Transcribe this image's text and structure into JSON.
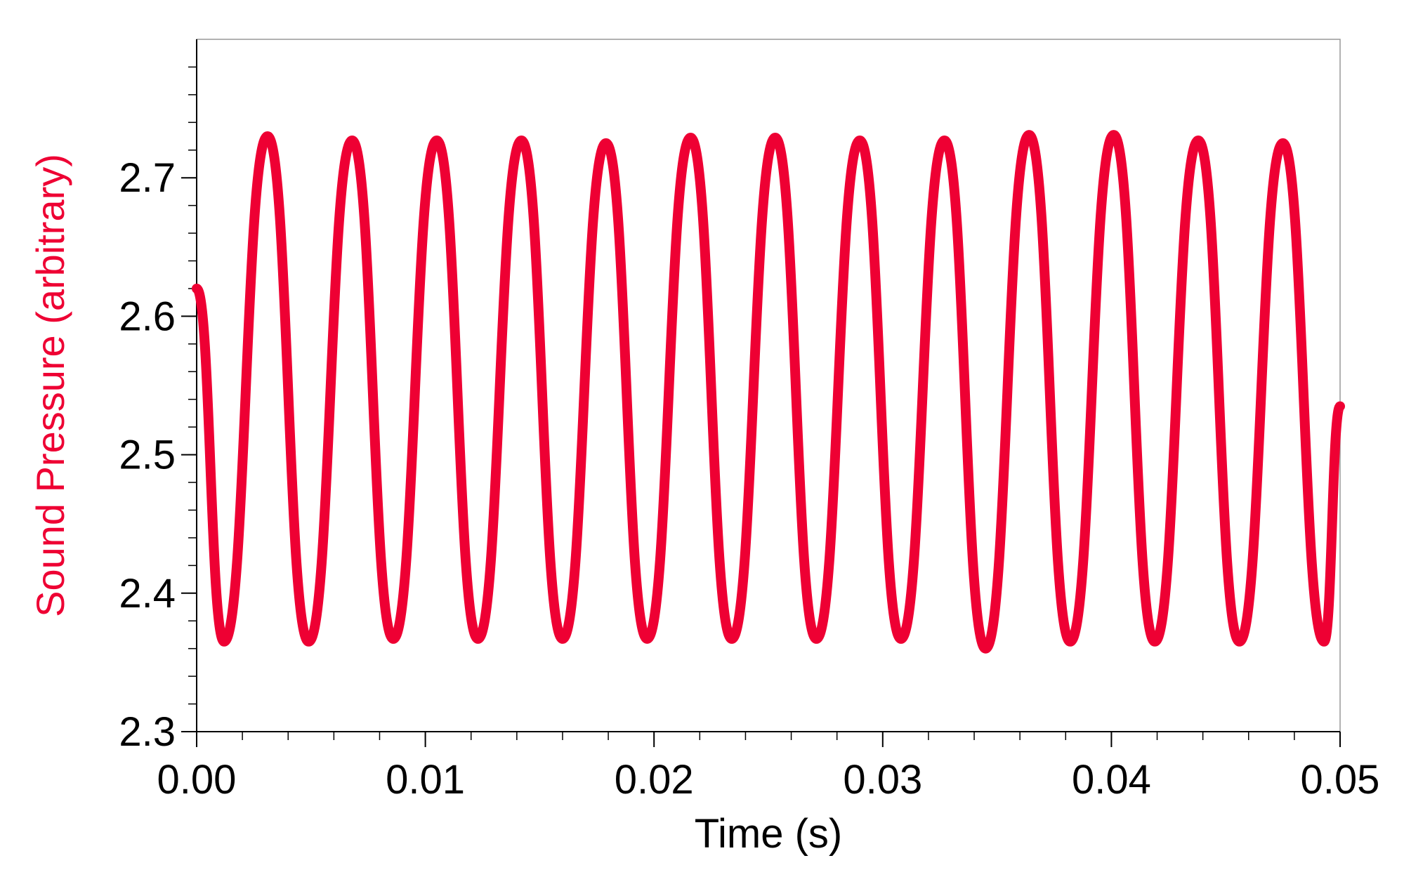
{
  "chart_data": {
    "type": "line",
    "title": "",
    "xlabel": "Time (s)",
    "ylabel": "Sound Pressure (arbitrary)",
    "xlim": [
      0,
      0.05
    ],
    "ylim": [
      2.3,
      2.8
    ],
    "x_ticks": [
      "0.00",
      "0.01",
      "0.02",
      "0.03",
      "0.04",
      "0.05"
    ],
    "y_ticks": [
      "2.3",
      "2.4",
      "2.5",
      "2.6",
      "2.7"
    ],
    "x_tick_values": [
      0,
      0.01,
      0.02,
      0.03,
      0.04,
      0.05
    ],
    "y_tick_values": [
      2.3,
      2.4,
      2.5,
      2.6,
      2.7
    ],
    "x_minor_step": 0.002,
    "y_minor_step": 0.02,
    "grid": false,
    "colors": {
      "series": "#ee0033",
      "axis": "#000000",
      "frame": "#999999"
    },
    "series": [
      {
        "x": [
          0,
          0.0012,
          0.0031,
          0.0049,
          0.0068,
          0.0086,
          0.0105,
          0.0123,
          0.0142,
          0.016,
          0.0179,
          0.0197,
          0.0216,
          0.0234,
          0.0253,
          0.0271,
          0.029,
          0.0308,
          0.0327,
          0.0345,
          0.0364,
          0.0382,
          0.0401,
          0.0419,
          0.0438,
          0.0456,
          0.0475,
          0.0493,
          0.05
        ],
        "y": [
          2.62,
          2.365,
          2.73,
          2.365,
          2.727,
          2.367,
          2.727,
          2.367,
          2.727,
          2.367,
          2.725,
          2.367,
          2.729,
          2.367,
          2.729,
          2.367,
          2.727,
          2.367,
          2.727,
          2.36,
          2.731,
          2.365,
          2.731,
          2.365,
          2.727,
          2.365,
          2.725,
          2.365,
          2.535
        ]
      }
    ]
  }
}
